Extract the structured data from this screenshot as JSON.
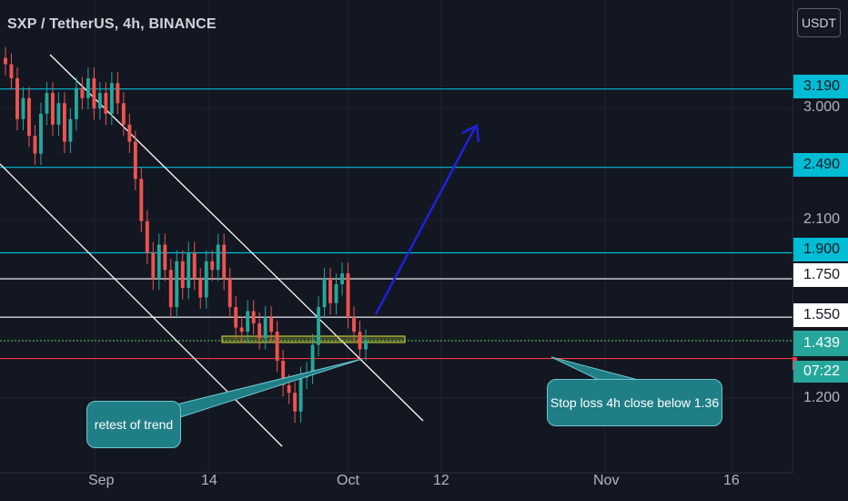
{
  "header": {
    "title": "SXP / TetherUS, 4h, BINANCE",
    "currency_button": "USDT"
  },
  "price_axis": {
    "ticks": [
      "3.000",
      "2.100",
      "1.200"
    ],
    "labels": [
      {
        "text": "3.190",
        "bg": "#00bcd4",
        "fg": "#131722"
      },
      {
        "text": "2.490",
        "bg": "#00bcd4",
        "fg": "#131722"
      },
      {
        "text": "1.900",
        "bg": "#00bcd4",
        "fg": "#131722"
      },
      {
        "text": "1.750",
        "bg": "#ffffff",
        "fg": "#131722"
      },
      {
        "text": "1.550",
        "bg": "#ffffff",
        "fg": "#131722"
      },
      {
        "text": "1.439",
        "bg": "#26a69a",
        "fg": "#ffffff"
      },
      {
        "text": "07:22",
        "bg": "#26a69a",
        "fg": "#ffffff"
      }
    ]
  },
  "time_axis": {
    "labels": [
      "Sep",
      "14",
      "Oct",
      "12",
      "Nov",
      "16"
    ]
  },
  "annotations": {
    "retest": "retest of trend",
    "stop_loss": "Stop loss 4h close below 1.36"
  },
  "colors": {
    "background": "#131722",
    "up": "#26a69a",
    "down": "#ef5350",
    "level_cyan": "#00bcd4",
    "level_white": "#ffffff",
    "stop_line": "#f23645",
    "arrow": "#1e22d8",
    "callout": "#1f7e86"
  },
  "chart_data": {
    "type": "candlestick",
    "symbol": "SXP / TetherUS",
    "interval": "4h",
    "exchange": "BINANCE",
    "ylim": [
      1.07,
      3.9
    ],
    "y_scale": "log",
    "levels": [
      {
        "price": 3.19,
        "color": "#00bcd4"
      },
      {
        "price": 2.49,
        "color": "#00bcd4"
      },
      {
        "price": 1.9,
        "color": "#00bcd4"
      },
      {
        "price": 1.75,
        "color": "#ffffff"
      },
      {
        "price": 1.55,
        "color": "#ffffff"
      },
      {
        "price": 1.439,
        "color": "#4caf50",
        "style": "dotted"
      },
      {
        "price": 1.36,
        "color": "#f23645"
      }
    ],
    "closes": [
      3.45,
      3.3,
      2.9,
      3.1,
      2.75,
      2.6,
      2.95,
      3.15,
      2.85,
      3.05,
      2.7,
      2.9,
      3.2,
      3.1,
      3.3,
      3.0,
      3.15,
      2.95,
      3.25,
      3.05,
      2.85,
      2.7,
      2.4,
      2.1,
      1.9,
      1.75,
      1.95,
      1.8,
      1.6,
      1.85,
      1.7,
      1.9,
      1.75,
      1.65,
      1.85,
      1.8,
      1.95,
      1.75,
      1.6,
      1.5,
      1.48,
      1.58,
      1.52,
      1.45,
      1.55,
      1.48,
      1.35,
      1.25,
      1.22,
      1.15,
      1.28,
      1.3,
      1.42,
      1.6,
      1.75,
      1.62,
      1.72,
      1.78,
      1.55,
      1.48,
      1.4,
      1.44
    ],
    "trend_channel": "descending",
    "projection": "arrow up to ~3.1 after breakout"
  }
}
